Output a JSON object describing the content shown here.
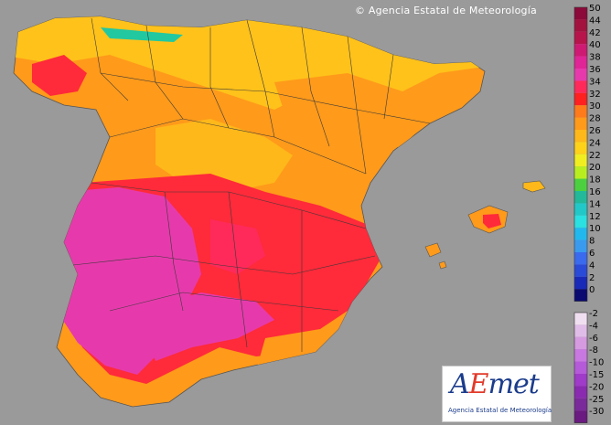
{
  "header": {
    "copyright": "© Agencia Estatal de Meteorología"
  },
  "logo": {
    "brand_prefix": "A",
    "brand_mid": "E",
    "brand_suffix": "met",
    "subtitle": "Agencia Estatal de Meteorología"
  },
  "legend": {
    "warm_scale": [
      {
        "label": "50",
        "color": "#8b0a3a"
      },
      {
        "label": "44",
        "color": "#a3123f"
      },
      {
        "label": "42",
        "color": "#b8144c"
      },
      {
        "label": "40",
        "color": "#cf1a73"
      },
      {
        "label": "38",
        "color": "#e02596"
      },
      {
        "label": "36",
        "color": "#e63aac"
      },
      {
        "label": "34",
        "color": "#ff2a5a"
      },
      {
        "label": "32",
        "color": "#ff2020"
      },
      {
        "label": "30",
        "color": "#ff7a1a"
      },
      {
        "label": "28",
        "color": "#ff9a1a"
      },
      {
        "label": "26",
        "color": "#ffb81a"
      },
      {
        "label": "24",
        "color": "#ffd21a"
      },
      {
        "label": "22",
        "color": "#f0ee20"
      },
      {
        "label": "20",
        "color": "#b8ee20"
      },
      {
        "label": "18",
        "color": "#4cd040"
      },
      {
        "label": "16",
        "color": "#22b89a"
      },
      {
        "label": "14",
        "color": "#22c8c8"
      },
      {
        "label": "12",
        "color": "#2ae0e0"
      },
      {
        "label": "10",
        "color": "#22b8ee"
      },
      {
        "label": "8",
        "color": "#3a9aee"
      },
      {
        "label": "6",
        "color": "#3a6aee"
      },
      {
        "label": "4",
        "color": "#2a4ad8"
      },
      {
        "label": "2",
        "color": "#1a2ab8"
      },
      {
        "label": "0",
        "color": "#0a0a70"
      }
    ],
    "cold_scale": [
      {
        "label": "-2",
        "color": "#f0dff0"
      },
      {
        "label": "-4",
        "color": "#e0bce8"
      },
      {
        "label": "-6",
        "color": "#d59ae0"
      },
      {
        "label": "-8",
        "color": "#c878e0"
      },
      {
        "label": "-10",
        "color": "#b55ad8"
      },
      {
        "label": "-15",
        "color": "#a03ac8"
      },
      {
        "label": "-20",
        "color": "#8a2ab0"
      },
      {
        "label": "-25",
        "color": "#7a2a9a"
      },
      {
        "label": "-30",
        "color": "#6a1a80"
      }
    ]
  },
  "map": {
    "background_color": "#9a9a9a",
    "colors": {
      "land_base": "#ff9a1a",
      "north_yellow": "#ffc21a",
      "hot_red": "#ff2a3a",
      "very_hot_magenta": "#e63aac",
      "border": "#3a3a3a",
      "coast_green": "#22c8a0"
    }
  }
}
